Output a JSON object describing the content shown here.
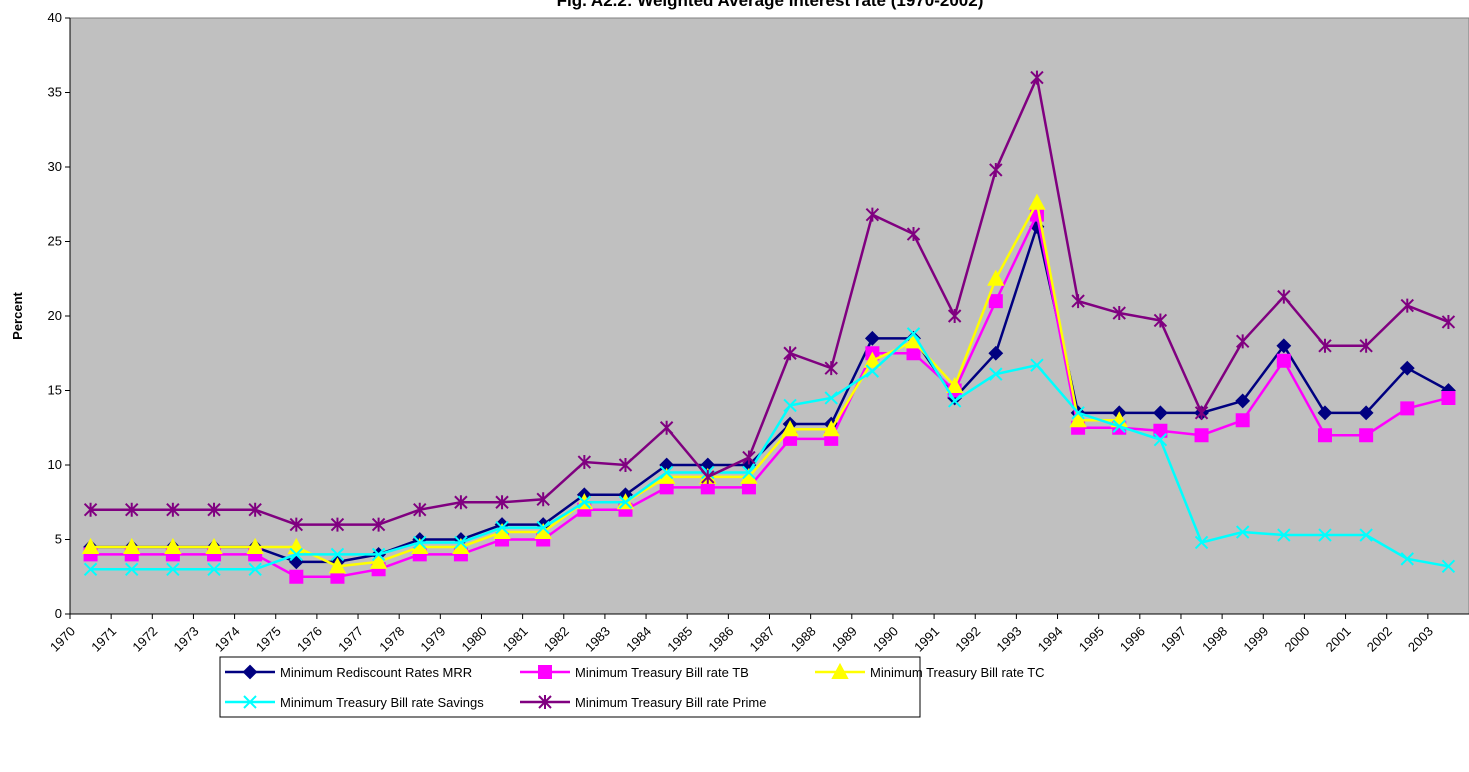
{
  "chart_data": {
    "type": "line",
    "title": "Fig. A2.2: Weighted Average Interest rate (1970-2002)",
    "y_label": "Percent",
    "categories": [
      "1970",
      "1971",
      "1972",
      "1973",
      "1974",
      "1975",
      "1976",
      "1977",
      "1978",
      "1979",
      "1980",
      "1981",
      "1982",
      "1983",
      "1984",
      "1985",
      "1986",
      "1987",
      "1988",
      "1989",
      "1990",
      "1991",
      "1992",
      "1993",
      "1994",
      "1995",
      "1996",
      "1997",
      "1998",
      "1999",
      "2000",
      "2001",
      "2002",
      "2003"
    ],
    "series": [
      {
        "name": "Minimum Rediscount Rates MRR",
        "color": "#000080",
        "marker": "diamond",
        "values": [
          4.5,
          4.5,
          4.5,
          4.5,
          4.5,
          3.5,
          3.5,
          4,
          5,
          5,
          6,
          6,
          8,
          8,
          10,
          10,
          10,
          12.75,
          12.75,
          18.5,
          18.5,
          14.5,
          17.5,
          26,
          13.5,
          13.5,
          13.5,
          13.5,
          14.3,
          18,
          13.5,
          13.5,
          16.5,
          15
        ]
      },
      {
        "name": "Minimum Treasury Bill rate TB",
        "color": "#ff00ff",
        "marker": "square",
        "values": [
          4,
          4,
          4,
          4,
          4,
          2.5,
          2.5,
          3,
          4,
          4,
          5,
          5,
          7,
          7,
          8.5,
          8.5,
          8.5,
          11.75,
          11.75,
          17.5,
          17.5,
          15,
          21,
          26.8,
          12.5,
          12.5,
          12.3,
          12,
          13,
          17,
          12,
          12,
          13.8,
          14.5
        ]
      },
      {
        "name": "Minimum Treasury Bill rate TC",
        "color": "#ffff00",
        "marker": "triangle",
        "values": [
          4.5,
          4.5,
          4.5,
          4.5,
          4.5,
          4.5,
          3.2,
          3.5,
          4.5,
          4.5,
          5.5,
          5.5,
          7.5,
          7.5,
          9.2,
          9.2,
          9.2,
          12.4,
          12.4,
          17,
          18.3,
          15.3,
          22.5,
          27.6,
          13,
          13,
          null,
          null,
          null,
          null,
          null,
          null,
          null,
          null
        ]
      },
      {
        "name": "Minimum Treasury Bill rate Savings",
        "color": "#00ffff",
        "marker": "x",
        "values": [
          3,
          3,
          3,
          3,
          3,
          4,
          4,
          4,
          4.8,
          4.8,
          5.8,
          5.8,
          7.5,
          7.5,
          9.5,
          9.5,
          9.5,
          14,
          14.5,
          16.3,
          18.8,
          14.3,
          16.1,
          16.7,
          13.5,
          12.6,
          11.7,
          4.8,
          5.5,
          5.3,
          5.3,
          5.3,
          3.7,
          3.2
        ]
      },
      {
        "name": "Minimum Treasury Bill rate Prime",
        "color": "#800080",
        "marker": "star",
        "values": [
          7,
          7,
          7,
          7,
          7,
          6,
          6,
          6,
          7,
          7.5,
          7.5,
          7.7,
          10.2,
          10,
          12.5,
          9.2,
          10.5,
          17.5,
          16.5,
          26.8,
          25.5,
          20,
          29.8,
          36,
          21,
          20.2,
          19.7,
          13.5,
          18.3,
          21.3,
          18,
          18,
          20.7,
          19.6
        ]
      }
    ],
    "ylim": [
      0,
      40
    ],
    "yticks": [
      0,
      5,
      10,
      15,
      20,
      25,
      30,
      35,
      40
    ],
    "grid": false,
    "plot_background": "#c0c0c0",
    "legend": "bottom"
  }
}
